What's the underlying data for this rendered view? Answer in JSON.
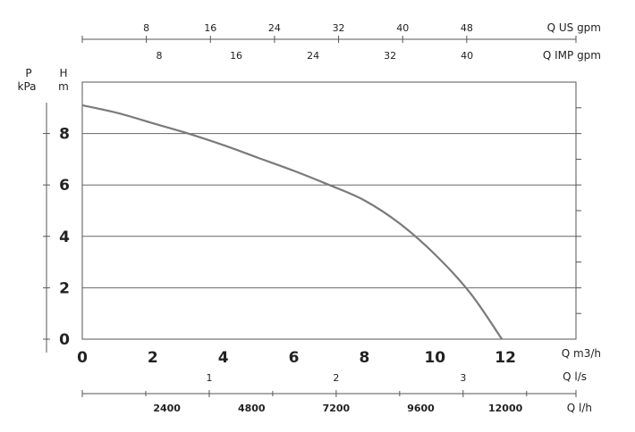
{
  "chart_data": {
    "type": "line",
    "x": [
      0,
      1,
      2,
      3,
      4,
      5,
      6,
      7,
      8,
      9,
      10,
      11,
      11.9
    ],
    "series": [
      {
        "values": [
          9.1,
          8.8,
          8.4,
          8.0,
          7.55,
          7.05,
          6.55,
          6.0,
          5.4,
          4.5,
          3.3,
          1.8,
          0
        ]
      }
    ],
    "xlim": [
      0,
      14
    ],
    "ylim": [
      0,
      10
    ],
    "xticks": [
      0,
      2,
      4,
      6,
      8,
      10,
      12
    ],
    "yticks": [
      0,
      2,
      4,
      6,
      8
    ],
    "grid": true,
    "y_units": {
      "p": "P",
      "p_unit": "kPa",
      "h": "H",
      "h_unit": "m"
    },
    "x_unit_main": "Q m3/h",
    "top_axes": [
      {
        "unit": "Q US gpm",
        "ticks": [
          8,
          16,
          24,
          32,
          40,
          48
        ],
        "factor": 4.4029
      },
      {
        "unit": "Q IMP gpm",
        "ticks": [
          8,
          16,
          24,
          32,
          40
        ],
        "factor": 3.6662
      }
    ],
    "bottom_axes": [
      {
        "unit": "Q l/s",
        "ticks": [
          "1",
          "2",
          "3"
        ],
        "values": [
          1,
          2,
          3
        ],
        "factor": 0.27778
      },
      {
        "unit": "Q l/h",
        "ticks": [
          "2400",
          "4800",
          "7200",
          "9600",
          "12000"
        ],
        "values": [
          2400,
          4800,
          7200,
          9600,
          12000
        ],
        "factor": 1000
      }
    ]
  }
}
